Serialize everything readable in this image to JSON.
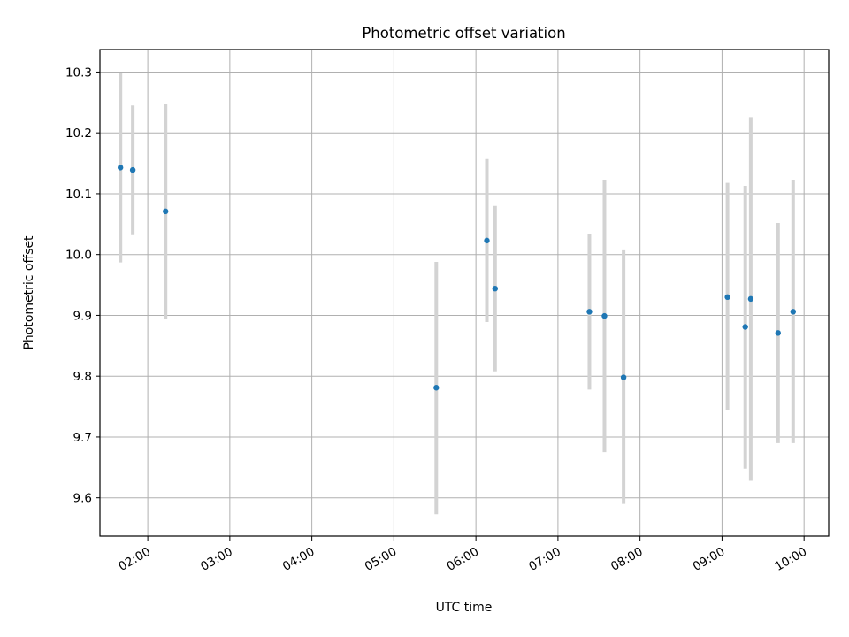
{
  "chart_data": {
    "type": "scatter",
    "title": "Photometric offset variation",
    "xlabel": "UTC time",
    "ylabel": "Photometric offset",
    "grid": true,
    "xlim": [
      "01:25",
      "10:18"
    ],
    "ylim": [
      9.537,
      10.337
    ],
    "x_ticks": [
      "02:00",
      "03:00",
      "04:00",
      "05:00",
      "06:00",
      "07:00",
      "08:00",
      "09:00",
      "10:00"
    ],
    "y_ticks": [
      "9.6",
      "9.7",
      "9.8",
      "9.9",
      "10.0",
      "10.1",
      "10.2",
      "10.3"
    ],
    "series": [
      {
        "marker_color": "#1f77b4",
        "errorbar_color": "#d3d3d3",
        "points": [
          {
            "x": "01:40",
            "y": 10.143,
            "ylow": 9.987,
            "yhigh": 10.299
          },
          {
            "x": "01:49",
            "y": 10.139,
            "ylow": 10.032,
            "yhigh": 10.245
          },
          {
            "x": "02:13",
            "y": 10.071,
            "ylow": 9.894,
            "yhigh": 10.248
          },
          {
            "x": "05:31",
            "y": 9.781,
            "ylow": 9.573,
            "yhigh": 9.988
          },
          {
            "x": "06:08",
            "y": 10.023,
            "ylow": 9.889,
            "yhigh": 10.157
          },
          {
            "x": "06:14",
            "y": 9.944,
            "ylow": 9.808,
            "yhigh": 10.08
          },
          {
            "x": "07:23",
            "y": 9.906,
            "ylow": 9.778,
            "yhigh": 10.034
          },
          {
            "x": "07:34",
            "y": 9.899,
            "ylow": 9.675,
            "yhigh": 10.122
          },
          {
            "x": "07:48",
            "y": 9.798,
            "ylow": 9.59,
            "yhigh": 10.007
          },
          {
            "x": "09:04",
            "y": 9.93,
            "ylow": 9.745,
            "yhigh": 10.118
          },
          {
            "x": "09:17",
            "y": 9.881,
            "ylow": 9.648,
            "yhigh": 10.113
          },
          {
            "x": "09:21",
            "y": 9.927,
            "ylow": 9.628,
            "yhigh": 10.226
          },
          {
            "x": "09:41",
            "y": 9.871,
            "ylow": 9.69,
            "yhigh": 10.052
          },
          {
            "x": "09:52",
            "y": 9.906,
            "ylow": 9.69,
            "yhigh": 10.122
          }
        ]
      }
    ]
  }
}
